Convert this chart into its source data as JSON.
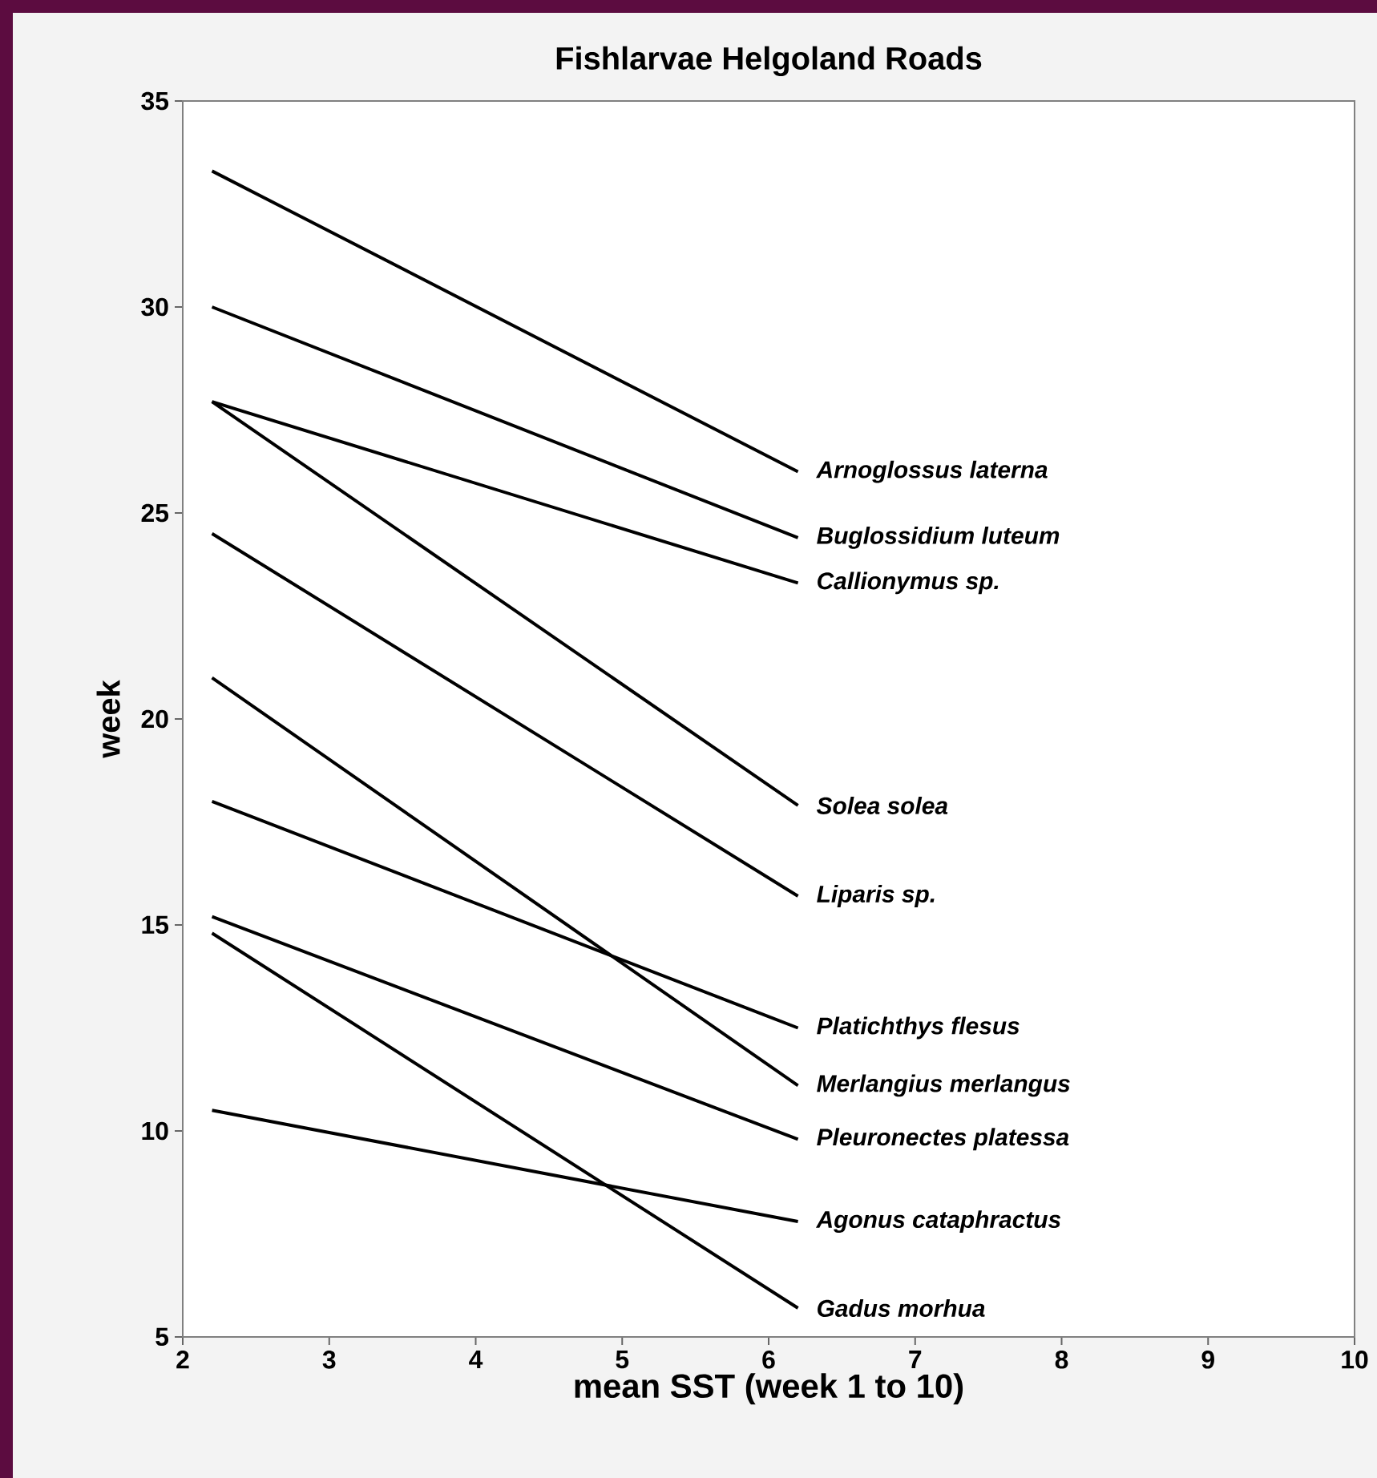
{
  "chart_data": {
    "type": "line",
    "title": "Fishlarvae Helgoland Roads",
    "xlabel": "mean SST (week 1 to 10)",
    "ylabel": "week",
    "xlim": [
      2,
      10
    ],
    "ylim": [
      5,
      35
    ],
    "xticks": [
      2,
      3,
      4,
      5,
      6,
      7,
      8,
      9,
      10
    ],
    "yticks": [
      5,
      10,
      15,
      20,
      25,
      30,
      35
    ],
    "x": [
      2.2,
      6.2
    ],
    "series": [
      {
        "name": "Arnoglossus laterna",
        "color": "#000000",
        "values": [
          33.3,
          26.0
        ]
      },
      {
        "name": "Buglossidium luteum",
        "color": "#000000",
        "values": [
          30.0,
          24.4
        ]
      },
      {
        "name": "Callionymus sp.",
        "color": "#000000",
        "values": [
          27.7,
          23.3
        ]
      },
      {
        "name": "Solea solea",
        "color": "#000000",
        "values": [
          27.7,
          17.9
        ]
      },
      {
        "name": "Liparis sp.",
        "color": "#000000",
        "values": [
          24.5,
          15.7
        ]
      },
      {
        "name": "Platichthys flesus",
        "color": "#000000",
        "values": [
          18.0,
          12.5
        ]
      },
      {
        "name": "Merlangius merlangus",
        "color": "#000000",
        "values": [
          21.0,
          11.1
        ]
      },
      {
        "name": "Pleuronectes platessa",
        "color": "#000000",
        "values": [
          15.2,
          9.8
        ]
      },
      {
        "name": "Agonus cataphractus",
        "color": "#000000",
        "values": [
          10.5,
          7.8
        ]
      },
      {
        "name": "Gadus morhua",
        "color": "#000000",
        "values": [
          14.8,
          5.7
        ]
      }
    ]
  }
}
